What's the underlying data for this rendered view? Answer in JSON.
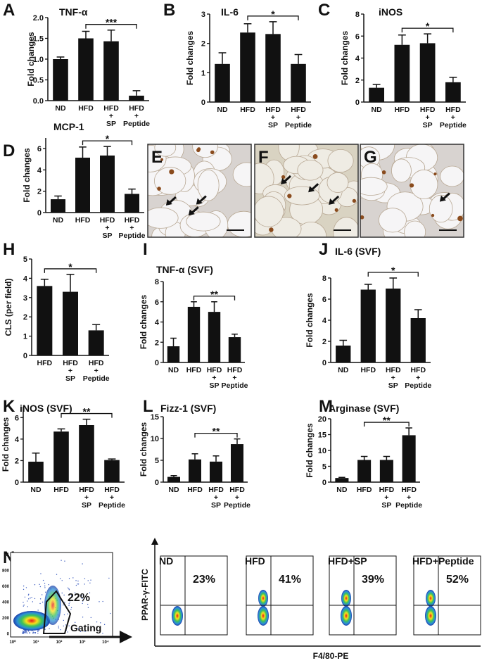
{
  "chart_data": [
    {
      "type": "bar",
      "panel": "A",
      "title": "TNF-α",
      "y_label": "Fold changes",
      "categories": [
        "ND",
        "HFD",
        "HFD\n+\nSP",
        "HFD\n+\nPeptide"
      ],
      "values": [
        1.0,
        1.5,
        1.43,
        0.12
      ],
      "errors": [
        0.05,
        0.17,
        0.27,
        0.12
      ],
      "color": "#111111",
      "ylim": [
        0,
        2
      ],
      "yticks": [
        {
          "value": 0,
          "label": "0.0"
        },
        0.5,
        {
          "value": 1,
          "label": "1.0"
        },
        1.5,
        {
          "value": 2,
          "label": "2.0"
        }
      ],
      "significance": [
        {
          "label": "***",
          "between": [
            1,
            3
          ]
        }
      ]
    },
    {
      "type": "bar",
      "panel": "B",
      "title": "IL-6",
      "y_label": "Fold changes",
      "categories": [
        "ND",
        "HFD",
        "HFD\n+\nSP",
        "HFD\n+\nPeptide"
      ],
      "values": [
        1.3,
        2.37,
        2.32,
        1.3
      ],
      "errors": [
        0.38,
        0.3,
        0.42,
        0.32
      ],
      "color": "#111111",
      "ylim": [
        0,
        3
      ],
      "yticks": [
        0,
        1,
        2,
        3
      ],
      "significance": [
        {
          "label": "*",
          "between": [
            1,
            3
          ]
        }
      ]
    },
    {
      "type": "bar",
      "panel": "C",
      "title": "iNOS",
      "y_label": "Fold changes",
      "categories": [
        "ND",
        "HFD",
        "HFD\n+\nSP",
        "HFD\n+\nPeptide"
      ],
      "values": [
        1.3,
        5.2,
        5.35,
        1.8
      ],
      "errors": [
        0.3,
        0.9,
        0.85,
        0.45
      ],
      "color": "#111111",
      "ylim": [
        0,
        8
      ],
      "yticks": [
        0,
        2,
        4,
        6,
        8
      ],
      "significance": [
        {
          "label": "*",
          "between": [
            1,
            3
          ]
        }
      ]
    },
    {
      "type": "bar",
      "panel": "D",
      "title": "MCP-1",
      "y_label": "Fold changes",
      "categories": [
        "ND",
        "HFD",
        "HFD\n+\nSP",
        "HFD\n+\nPeptide"
      ],
      "values": [
        1.25,
        5.15,
        5.35,
        1.75
      ],
      "errors": [
        0.3,
        1.0,
        0.85,
        0.45
      ],
      "color": "#111111",
      "ylim": [
        0,
        7
      ],
      "yticks": [
        0,
        2,
        4,
        6
      ],
      "significance": [
        {
          "label": "*",
          "between": [
            1,
            3
          ]
        }
      ]
    },
    {
      "type": "bar",
      "panel": "H",
      "y_label": "CLS (per field)",
      "categories": [
        "HFD",
        "HFD\n+\nSP",
        "HFD\n+\nPeptide"
      ],
      "values": [
        3.6,
        3.3,
        1.3
      ],
      "errors": [
        0.35,
        0.9,
        0.3
      ],
      "color": "#111111",
      "ylim": [
        0,
        5
      ],
      "yticks": [
        0,
        1,
        2,
        3,
        4,
        5
      ],
      "significance": [
        {
          "label": "*",
          "between": [
            0,
            2
          ]
        }
      ]
    },
    {
      "type": "bar",
      "panel": "I",
      "title": "TNF-α (SVF)",
      "y_label": "Fold changes",
      "categories": [
        "ND",
        "HFD",
        "HFD\n+\nSP",
        "HFD\n+\nPeptide"
      ],
      "values": [
        1.6,
        5.5,
        5.0,
        2.5
      ],
      "errors": [
        0.8,
        0.5,
        1.0,
        0.3
      ],
      "color": "#111111",
      "ylim": [
        0,
        8
      ],
      "yticks": [
        0,
        2,
        4,
        6,
        8
      ],
      "significance": [
        {
          "label": "**",
          "between": [
            1,
            3
          ]
        }
      ]
    },
    {
      "type": "bar",
      "panel": "J",
      "title": "IL-6 (SVF)",
      "y_label": "Fold changes",
      "categories": [
        "ND",
        "HFD",
        "HFD\n+\nSP",
        "HFD\n+\nPeptide"
      ],
      "values": [
        1.6,
        6.9,
        7.0,
        4.2
      ],
      "errors": [
        0.5,
        0.5,
        1.0,
        0.8
      ],
      "color": "#111111",
      "ylim": [
        0,
        8
      ],
      "yticks": [
        0,
        2,
        4,
        6,
        8
      ],
      "significance": [
        {
          "label": "*",
          "between": [
            1,
            3
          ]
        }
      ]
    },
    {
      "type": "bar",
      "panel": "K",
      "title": "iNOS (SVF)",
      "y_label": "Fold changes",
      "categories": [
        "ND",
        "HFD",
        "HFD\n+\nSP",
        "HFD\n+\nPeptide"
      ],
      "values": [
        1.9,
        4.7,
        5.3,
        2.05
      ],
      "errors": [
        0.8,
        0.25,
        0.55,
        0.1
      ],
      "color": "#111111",
      "ylim": [
        0,
        7
      ],
      "yticks": [
        0,
        2,
        4,
        6
      ],
      "significance": [
        {
          "label": "**",
          "between": [
            1,
            3
          ]
        }
      ]
    },
    {
      "type": "bar",
      "panel": "L",
      "title": "Fizz-1 (SVF)",
      "y_label": "Fold changes",
      "categories": [
        "ND",
        "HFD",
        "HFD\n+\nSP",
        "HFD\n+\nPeptide"
      ],
      "values": [
        1.2,
        5.2,
        4.7,
        8.7
      ],
      "errors": [
        0.3,
        1.3,
        1.3,
        1.2
      ],
      "color": "#111111",
      "ylim": [
        0,
        15
      ],
      "yticks": [
        0,
        5,
        10,
        15
      ],
      "significance": [
        {
          "label": "**",
          "between": [
            1,
            3
          ]
        }
      ]
    },
    {
      "type": "bar",
      "panel": "M",
      "title": "Arginase (SVF)",
      "y_label": "Fold changes",
      "categories": [
        "ND",
        "HFD",
        "HFD\n+\nSP",
        "HFD\n+\nPeptide"
      ],
      "values": [
        1.3,
        7.0,
        7.0,
        14.8
      ],
      "errors": [
        0.2,
        1.1,
        1.1,
        2.3
      ],
      "color": "#111111",
      "ylim": [
        0,
        20
      ],
      "yticks": [
        0,
        5,
        10,
        15,
        20
      ],
      "significance": [
        {
          "label": "**",
          "between": [
            1,
            3
          ]
        }
      ]
    }
  ],
  "micrographs": [
    {
      "panel": "E"
    },
    {
      "panel": "F"
    },
    {
      "panel": "G"
    }
  ],
  "flow_cytometry": {
    "panel": "N",
    "gate_percent": "22%",
    "gating_label": "Gating",
    "dot_plot_yticks": [
      "1K",
      "800",
      "600",
      "400",
      "200",
      "0"
    ],
    "dot_plot_xticks": [
      "10⁰",
      "10¹",
      "10²",
      "10³",
      "10⁴"
    ],
    "y_label": "PPAR-γ-FITC",
    "x_label": "F4/80-PE",
    "plots": [
      {
        "title": "ND",
        "percent": "23%"
      },
      {
        "title": "HFD",
        "percent": "41%"
      },
      {
        "title": "HFD+SP",
        "percent": "39%"
      },
      {
        "title": "HFD+Peptide",
        "percent": "52%"
      }
    ]
  }
}
